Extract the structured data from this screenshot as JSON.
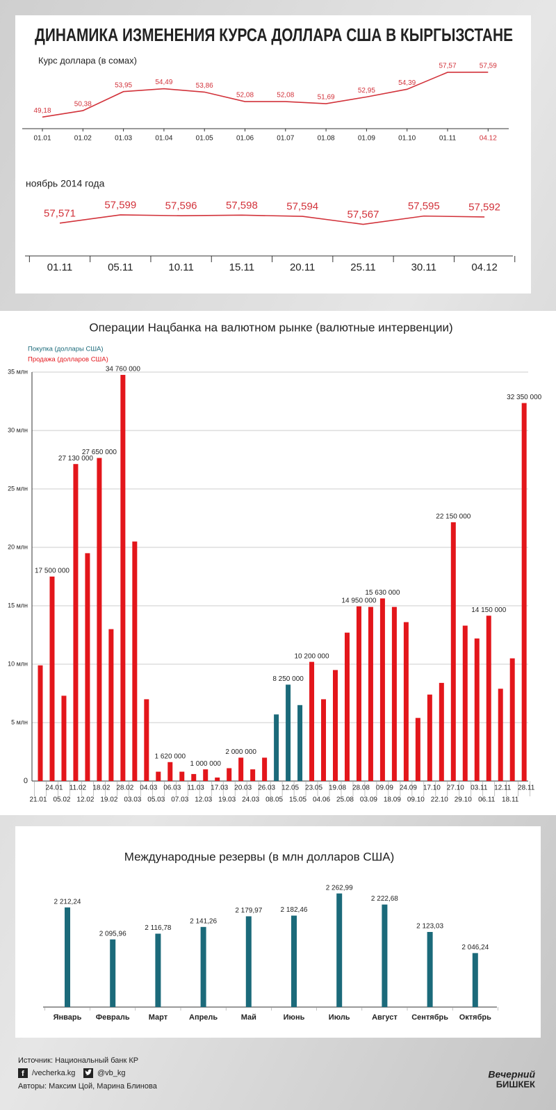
{
  "header": {
    "title": "ДИНАМИКА ИЗМЕНЕНИЯ КУРСА ДОЛЛАРА США В КЫРГЫЗСТАНЕ"
  },
  "chart_data": [
    {
      "type": "line",
      "title": "Курс доллара (в сомах)",
      "color": "#d2323a",
      "categories": [
        "01.01",
        "01.02",
        "01.03",
        "01.04",
        "01.05",
        "01.06",
        "01.07",
        "01.08",
        "01.09",
        "01.10",
        "01.11",
        "04.12"
      ],
      "values": [
        49.18,
        50.38,
        53.95,
        54.49,
        53.86,
        52.08,
        52.08,
        51.69,
        52.95,
        54.39,
        57.57,
        57.59
      ],
      "value_labels": [
        "49,18",
        "50,38",
        "53,95",
        "54,49",
        "53,86",
        "52,08",
        "52,08",
        "51,69",
        "52,95",
        "54,39",
        "57,57",
        "57,59"
      ],
      "ylim": [
        47,
        59
      ]
    },
    {
      "type": "line",
      "title": "ноябрь 2014 года",
      "color": "#d2323a",
      "categories": [
        "01.11",
        "05.11",
        "10.11",
        "15.11",
        "20.11",
        "25.11",
        "30.11",
        "04.12"
      ],
      "values": [
        57.571,
        57.599,
        57.596,
        57.598,
        57.594,
        57.567,
        57.595,
        57.592
      ],
      "value_labels": [
        "57,571",
        "57,599",
        "57,596",
        "57,598",
        "57,594",
        "57,567",
        "57,595",
        "57,592"
      ],
      "ylim": [
        57.46,
        57.62
      ]
    },
    {
      "type": "bar",
      "title": "Операции Нацбанка на валютном рынке (валютные интервенции)",
      "categories": [
        "21.01",
        "24.01",
        "05.02",
        "11.02",
        "12.02",
        "18.02",
        "19.02",
        "28.02",
        "03.03",
        "04.03",
        "05.03",
        "06.03",
        "07.03",
        "11.03",
        "12.03",
        "17.03",
        "19.03",
        "20.03",
        "24.03",
        "26.03",
        "08.05",
        "12.05",
        "15.05",
        "23.05",
        "04.06",
        "19.08",
        "25.08",
        "28.08",
        "03.09",
        "09.09",
        "18.09",
        "24.09",
        "09.10",
        "17.10",
        "22.10",
        "27.10",
        "29.10",
        "03.11",
        "06.11",
        "12.11",
        "18.11",
        "28.11"
      ],
      "series": [
        {
          "name": "Покупка (доллары США)",
          "color": "#1b6a7a",
          "values": [
            null,
            null,
            null,
            null,
            null,
            null,
            null,
            null,
            null,
            null,
            null,
            null,
            null,
            null,
            null,
            null,
            null,
            null,
            null,
            null,
            5.7,
            8.25,
            6.5,
            null,
            null,
            null,
            null,
            null,
            null,
            null,
            null,
            null,
            null,
            null,
            null,
            null,
            null,
            null,
            null,
            null,
            null,
            null
          ],
          "value_labels": [
            null,
            null,
            null,
            null,
            null,
            null,
            null,
            null,
            null,
            null,
            null,
            null,
            null,
            null,
            null,
            null,
            null,
            null,
            null,
            null,
            null,
            "8 250 000",
            null,
            null,
            null,
            null,
            null,
            null,
            null,
            null,
            null,
            null,
            null,
            null,
            null,
            null,
            null,
            null,
            null,
            null,
            null,
            null
          ]
        },
        {
          "name": "Продажа (долларов США)",
          "color": "#e3161b",
          "values": [
            9.9,
            17.5,
            7.3,
            27.13,
            19.5,
            27.65,
            13.0,
            34.76,
            20.5,
            7.0,
            0.8,
            1.62,
            0.8,
            0.6,
            1.0,
            0.3,
            1.1,
            2.0,
            1.0,
            2.0,
            null,
            null,
            null,
            10.2,
            7.0,
            9.5,
            12.7,
            14.95,
            14.9,
            15.63,
            14.9,
            13.6,
            5.4,
            7.4,
            8.4,
            22.15,
            13.3,
            12.2,
            14.15,
            7.9,
            10.5,
            32.35
          ],
          "value_labels": [
            null,
            "17 500 000",
            null,
            "27 130 000",
            null,
            "27 650 000",
            null,
            "34 760 000",
            null,
            null,
            null,
            "1 620 000",
            null,
            null,
            "1 000 000",
            null,
            null,
            "2 000 000",
            null,
            null,
            null,
            null,
            null,
            "10 200 000",
            null,
            null,
            null,
            "14 950 000",
            null,
            "15 630 000",
            null,
            null,
            null,
            null,
            null,
            "22 150 000",
            null,
            null,
            "14 150 000",
            null,
            null,
            "32 350 000"
          ]
        }
      ],
      "ylim": [
        0,
        35
      ],
      "yticks": [
        0,
        {
          "value": 5,
          "label": "5 млн"
        },
        {
          "value": 10,
          "label": "10 млн"
        },
        {
          "value": 15,
          "label": "15 млн"
        },
        {
          "value": 20,
          "label": "20 млн"
        },
        {
          "value": 25,
          "label": "25 млн"
        },
        {
          "value": 30,
          "label": "30 млн"
        },
        {
          "value": 35,
          "label": "35 млн"
        }
      ],
      "grid": true
    },
    {
      "type": "bar",
      "title": "Международные резервы (в млн долларов США)",
      "color": "#1b6a7a",
      "categories": [
        "Январь",
        "Февраль",
        "Март",
        "Апрель",
        "Май",
        "Июнь",
        "Июль",
        "Август",
        "Сентябрь",
        "Октябрь"
      ],
      "values": [
        2212.24,
        2095.96,
        2116.78,
        2141.26,
        2179.97,
        2182.46,
        2262.99,
        2222.68,
        2123.03,
        2046.24
      ],
      "value_labels": [
        "2 212,24",
        "2 095,96",
        "2 116,78",
        "2 141,26",
        "2 179,97",
        "2 182,46",
        "2 262,99",
        "2 222,68",
        "2 123,03",
        "2 046,24"
      ],
      "ylim": [
        1850,
        2300
      ]
    }
  ],
  "footer": {
    "source": "Источник: Национальный банк КР",
    "facebook": "/vecherka.kg",
    "twitter": "@vb_kg",
    "authors": "Авторы: Максим Цой, Марина Блинова",
    "logo_top": "Вечерний",
    "logo_bottom": "БИШКЕК"
  }
}
